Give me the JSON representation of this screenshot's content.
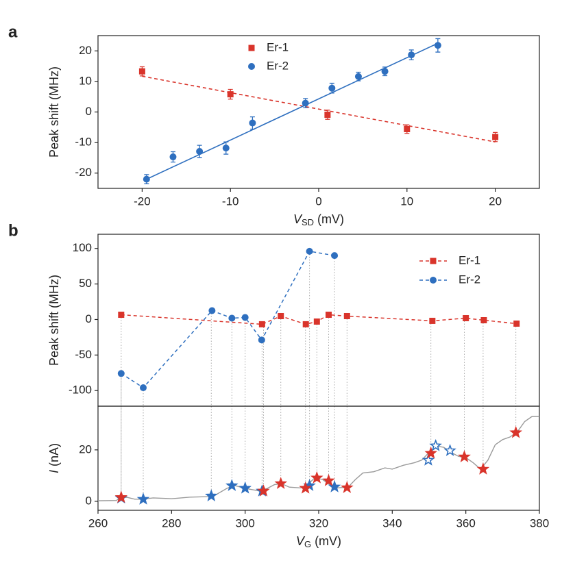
{
  "chart_data": [
    {
      "type": "scatter",
      "panel": "a",
      "xlabel": "V",
      "xlabel_sub": "SD",
      "xlabel_unit": "(mV)",
      "ylabel": "Peak shift (MHz)",
      "xlim": [
        -25,
        25
      ],
      "ylim": [
        -25,
        25
      ],
      "xticks": [
        -20,
        -10,
        0,
        10,
        20
      ],
      "yticks": [
        -20,
        -10,
        0,
        10,
        20
      ],
      "legend": "upper center",
      "series": [
        {
          "name": "Er-1",
          "color": "#d9342b",
          "marker": "square",
          "fit_style": "dashed",
          "x": [
            -20,
            -10,
            1,
            10,
            20
          ],
          "values": [
            13.3,
            5.8,
            -0.9,
            -5.6,
            -8.2
          ],
          "errors": [
            1.5,
            1.6,
            1.5,
            1.4,
            1.5
          ],
          "fit_x": [
            -20,
            20
          ],
          "fit_values": [
            11.7,
            -9.8
          ]
        },
        {
          "name": "Er-2",
          "color": "#2e6fbf",
          "marker": "circle",
          "fit_style": "solid",
          "x": [
            -19.5,
            -16.5,
            -13.5,
            -10.5,
            -7.5,
            -1.5,
            1.5,
            4.5,
            7.5,
            10.5,
            13.5
          ],
          "values": [
            -22,
            -14.7,
            -12.9,
            -11.8,
            -3.6,
            2.9,
            7.8,
            11.6,
            13.3,
            18.7,
            21.8
          ],
          "errors": [
            1.5,
            1.7,
            2,
            2,
            2,
            1.5,
            1.6,
            1.4,
            1.4,
            1.6,
            2.2
          ],
          "fit_x": [
            -19.5,
            13.5
          ],
          "fit_values": [
            -22,
            22.5
          ]
        }
      ]
    },
    {
      "type": "line",
      "panel": "b",
      "ylabel": "Peak shift (MHz)",
      "xlim": [
        260,
        380
      ],
      "ylim": [
        -122,
        120
      ],
      "yticks": [
        -100,
        -50,
        0,
        50,
        100
      ],
      "legend": "upper right",
      "series": [
        {
          "name": "Er-1",
          "color": "#d9342b",
          "marker": "square",
          "x": [
            266.3,
            304.6,
            309.7,
            316.5,
            319.5,
            322.7,
            327.7,
            350.9,
            360,
            364.9,
            373.8
          ],
          "values": [
            6.7,
            -6.7,
            4.8,
            -6.7,
            -2.9,
            6.7,
            4.8,
            -1.9,
            1.9,
            -1,
            -5.8
          ]
        },
        {
          "name": "Er-2",
          "color": "#2e6fbf",
          "marker": "circle",
          "x": [
            266.3,
            272.3,
            291,
            296.4,
            300,
            304.5,
            317.5,
            324.3
          ],
          "values": [
            -76,
            -96,
            12.5,
            1.9,
            2.9,
            -28.8,
            96,
            90
          ]
        }
      ]
    },
    {
      "type": "trace",
      "xlabel": "V",
      "xlabel_sub": "G",
      "xlabel_unit": "(mV)",
      "ylabel": "I",
      "ylabel_unit": "(nA)",
      "xlim": [
        260,
        380
      ],
      "ylim": [
        -3.5,
        37
      ],
      "xticks": [
        260,
        280,
        300,
        320,
        340,
        360,
        380
      ],
      "yticks": [
        0,
        20
      ],
      "trace_color": "#9a9a9a",
      "trace_x": [
        260,
        265,
        266,
        268,
        270,
        272,
        275,
        280,
        285,
        290,
        292,
        295,
        297,
        300,
        302,
        304,
        306,
        308,
        310,
        312,
        315,
        317,
        319,
        321,
        323,
        325,
        328,
        330,
        332,
        335,
        338,
        340,
        343,
        346,
        348,
        350,
        352,
        354,
        356,
        358,
        360,
        362,
        364,
        366,
        368,
        370,
        372,
        374,
        376,
        378,
        380
      ],
      "trace_values": [
        0.2,
        0.3,
        1.5,
        1.5,
        0.8,
        0.8,
        1.3,
        1.0,
        1.6,
        1.8,
        2.5,
        5,
        6.2,
        5.0,
        4.5,
        4.0,
        5,
        6.5,
        6.8,
        5.5,
        5.2,
        6.5,
        9.2,
        8.5,
        6.5,
        5.2,
        5.5,
        8.5,
        11,
        11.5,
        13,
        12.5,
        14,
        15,
        16,
        19,
        21.5,
        21,
        19,
        17.5,
        17,
        15,
        12.5,
        16,
        22,
        24,
        25,
        27,
        31,
        33,
        33
      ],
      "series": [
        {
          "color": "#2e6fbf",
          "hollow": [
            false,
            false,
            false,
            false,
            false,
            false,
            false,
            false,
            true,
            true,
            true
          ],
          "x": [
            266.3,
            272.3,
            290.8,
            296.4,
            300,
            304.6,
            317.5,
            324.3,
            349.8,
            351.8,
            355.7
          ],
          "values": [
            1.3,
            0.8,
            2.1,
            6.1,
            5.1,
            4,
            6.1,
            5.6,
            16,
            21.6,
            19.7
          ]
        },
        {
          "color": "#d9342b",
          "hollow": [
            false,
            false,
            false,
            false,
            false,
            false,
            false,
            false,
            false,
            false,
            false
          ],
          "x": [
            266.3,
            305,
            309.7,
            316.4,
            319.5,
            322.7,
            327.7,
            350.5,
            359.6,
            364.7,
            373.6
          ],
          "values": [
            1.5,
            4,
            6.9,
            5.1,
            9.1,
            8,
            5.3,
            18.7,
            17.3,
            12.5,
            26.7
          ]
        }
      ]
    }
  ]
}
